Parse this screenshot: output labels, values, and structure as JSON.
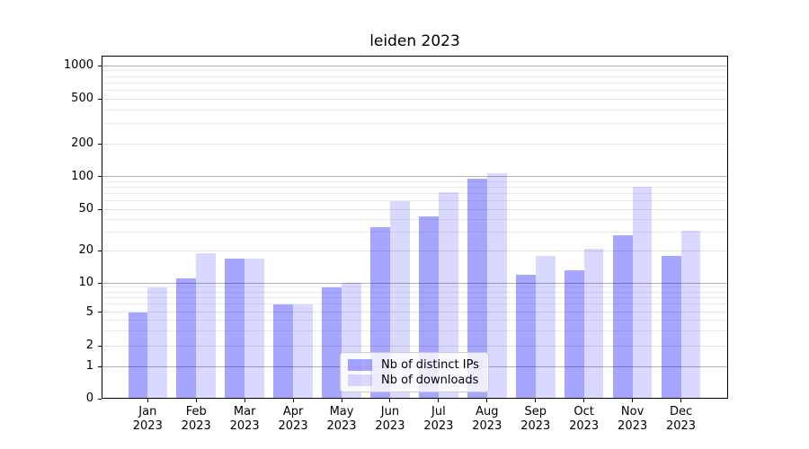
{
  "chart_data": {
    "type": "bar",
    "title": "leiden 2023",
    "categories": [
      "Jan 2023",
      "Feb 2023",
      "Mar 2023",
      "Apr 2023",
      "May 2023",
      "Jun 2023",
      "Jul 2023",
      "Aug 2023",
      "Sep 2023",
      "Oct 2023",
      "Nov 2023",
      "Dec 2023"
    ],
    "month_labels": [
      "Jan",
      "Feb",
      "Mar",
      "Apr",
      "May",
      "Jun",
      "Jul",
      "Aug",
      "Sep",
      "Oct",
      "Nov",
      "Dec"
    ],
    "year_label": "2023",
    "series": [
      {
        "name": "Nb of distinct IPs",
        "color": "rgba(0,0,255,0.35)",
        "color_hex": "#a6a6ff",
        "values": [
          5,
          11,
          17,
          6,
          9,
          34,
          43,
          95,
          12,
          13,
          28,
          18
        ]
      },
      {
        "name": "Nb of downloads",
        "color": "rgba(0,0,255,0.15)",
        "color_hex": "#dcdcff",
        "values": [
          9,
          19,
          17,
          6,
          10,
          60,
          72,
          107,
          18,
          21,
          80,
          31
        ]
      }
    ],
    "yscale": "symlog",
    "y_ticks": [
      0,
      1,
      2,
      5,
      10,
      20,
      50,
      100,
      200,
      500,
      1000
    ],
    "ylim": [
      0,
      1200
    ],
    "xlabel": "",
    "ylabel": "",
    "grid": true,
    "legend_position": "lower center"
  },
  "colors": {
    "background": "#ffffff",
    "axis": "#000000",
    "grid_major": "#b0b0b0",
    "grid_mid": "#e2e2e2",
    "grid_minor": "#ebebeb",
    "legend_border": "#cccccc",
    "text": "#000000"
  }
}
